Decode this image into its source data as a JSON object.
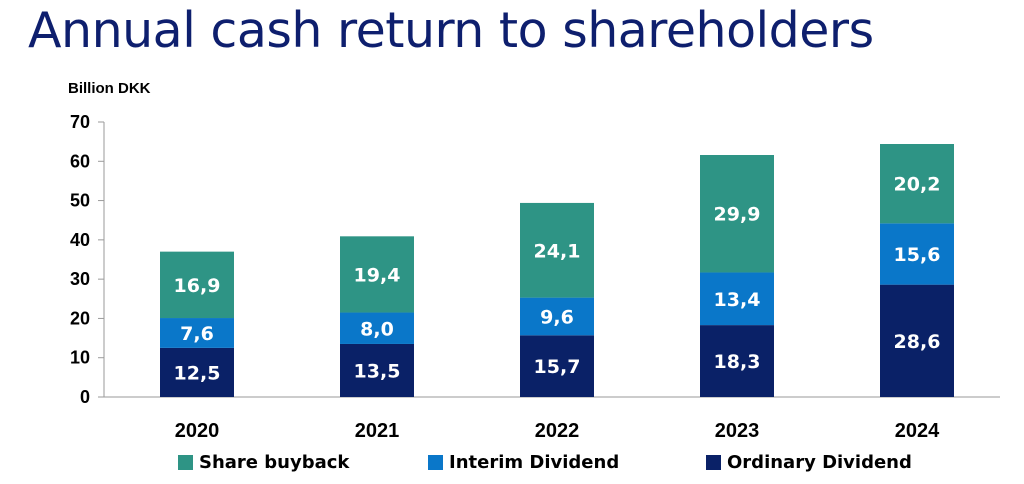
{
  "title": "Annual cash return to shareholders",
  "chart_data": {
    "type": "bar",
    "stacked": true,
    "unit_label": "Billion DKK",
    "categories": [
      "2020",
      "2021",
      "2022",
      "2023",
      "2024"
    ],
    "series": [
      {
        "name": "Ordinary Dividend",
        "color": "#0a2167",
        "values": [
          12.5,
          13.5,
          15.7,
          18.3,
          28.6
        ],
        "labels": [
          "12,5",
          "13,5",
          "15,7",
          "18,3",
          "28,6"
        ]
      },
      {
        "name": "Interim Dividend",
        "color": "#0a77c9",
        "values": [
          7.6,
          8.0,
          9.6,
          13.4,
          15.6
        ],
        "labels": [
          "7,6",
          "8,0",
          "9,6",
          "13,4",
          "15,6"
        ]
      },
      {
        "name": "Share buyback",
        "color": "#2e9485",
        "values": [
          16.9,
          19.4,
          24.1,
          29.9,
          20.2
        ],
        "labels": [
          "16,9",
          "19,4",
          "24,1",
          "29,9",
          "20,2"
        ]
      }
    ],
    "ylim": [
      0,
      70
    ],
    "yticks": [
      "0",
      "10",
      "20",
      "30",
      "40",
      "50",
      "60",
      "70"
    ],
    "grid": false,
    "legend": {
      "position": "bottom",
      "order": [
        "Share buyback",
        "Interim Dividend",
        "Ordinary Dividend"
      ]
    }
  }
}
